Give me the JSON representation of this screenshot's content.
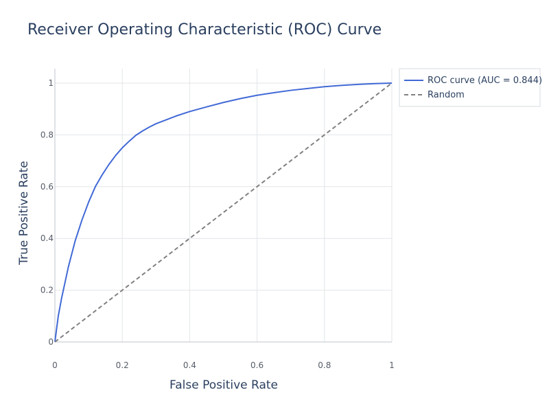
{
  "chart_data": {
    "type": "line",
    "title": "Receiver Operating Characteristic (ROC) Curve",
    "xlabel": "False Positive Rate",
    "ylabel": "True Positive Rate",
    "xlim": [
      0,
      1
    ],
    "ylim": [
      0,
      1
    ],
    "grid": true,
    "legend_position": "top-right-outside",
    "x_ticks": [
      0,
      0.2,
      0.4,
      0.6,
      0.8,
      1
    ],
    "y_ticks": [
      0,
      0.2,
      0.4,
      0.6,
      0.8,
      1
    ],
    "x_tick_labels": [
      "0",
      "0.2",
      "0.4",
      "0.6",
      "0.8",
      "1"
    ],
    "y_tick_labels": [
      "0",
      "0.2",
      "0.4",
      "0.6",
      "0.8",
      "1"
    ],
    "series": [
      {
        "name": "ROC curve (AUC = 0.844)",
        "color": "#4169d6",
        "dash": "solid",
        "x": [
          0,
          0.005,
          0.01,
          0.02,
          0.03,
          0.04,
          0.05,
          0.06,
          0.07,
          0.08,
          0.1,
          0.12,
          0.14,
          0.16,
          0.18,
          0.2,
          0.22,
          0.24,
          0.26,
          0.28,
          0.3,
          0.33,
          0.36,
          0.4,
          0.45,
          0.5,
          0.55,
          0.6,
          0.65,
          0.7,
          0.75,
          0.8,
          0.85,
          0.9,
          0.95,
          1.0
        ],
        "y": [
          0,
          0.05,
          0.1,
          0.17,
          0.23,
          0.29,
          0.34,
          0.39,
          0.43,
          0.47,
          0.54,
          0.6,
          0.645,
          0.685,
          0.72,
          0.75,
          0.775,
          0.798,
          0.815,
          0.83,
          0.843,
          0.858,
          0.873,
          0.89,
          0.908,
          0.925,
          0.94,
          0.953,
          0.963,
          0.972,
          0.979,
          0.986,
          0.991,
          0.995,
          0.998,
          1.0
        ]
      },
      {
        "name": "Random",
        "color": "#808080",
        "dash": "dashed",
        "x": [
          0,
          1
        ],
        "y": [
          0,
          1
        ]
      }
    ]
  }
}
